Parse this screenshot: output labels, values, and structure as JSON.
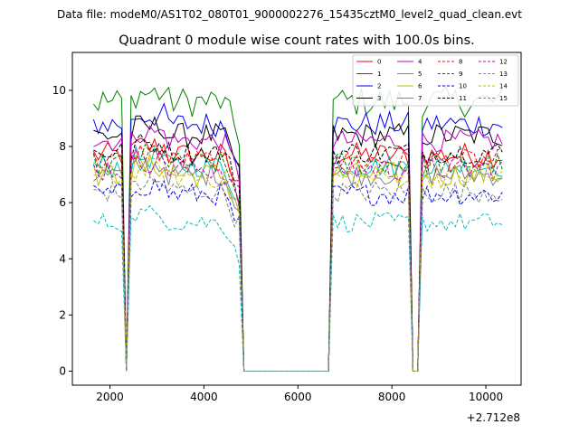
{
  "chart_data": {
    "type": "line",
    "suptitle": "Data file: modeM0/AS1T02_080T01_9000002276_15435cztM0_level2_quad_clean.evt",
    "title": "Quadrant 0 module wise count rates with 100.0s bins.",
    "xlabel": "",
    "ylabel": "",
    "x_offset_label": "+2.712e8",
    "xlim": [
      1200,
      10750
    ],
    "ylim": [
      -0.5,
      11.35
    ],
    "xticks": [
      2000,
      4000,
      6000,
      8000,
      10000
    ],
    "yticks": [
      0,
      2,
      4,
      6,
      8,
      10
    ],
    "legend_position": "top-right",
    "bin_width_s": 100,
    "x_start": 1650,
    "x_end": 10350,
    "segments": [
      [
        1650,
        2250
      ],
      [
        2450,
        4750
      ],
      [
        6750,
        8350
      ],
      [
        8650,
        10350
      ]
    ],
    "series": [
      {
        "name": "0",
        "color": "#ff0000",
        "dash": false,
        "level": 7.7,
        "amp": 0.45
      },
      {
        "name": "1",
        "color": "#008000",
        "dash": false,
        "level": 9.6,
        "amp": 0.55
      },
      {
        "name": "2",
        "color": "#0000ff",
        "dash": false,
        "level": 8.8,
        "amp": 0.45
      },
      {
        "name": "3",
        "color": "#000000",
        "dash": false,
        "level": 8.4,
        "amp": 0.45
      },
      {
        "name": "4",
        "color": "#bf00bf",
        "dash": false,
        "level": 8.2,
        "amp": 0.4
      },
      {
        "name": "5",
        "color": "#00bfbf",
        "dash": false,
        "level": 7.3,
        "amp": 0.4
      },
      {
        "name": "6",
        "color": "#bfbf00",
        "dash": false,
        "level": 7.0,
        "amp": 0.45
      },
      {
        "name": "7",
        "color": "#808080",
        "dash": false,
        "level": 7.0,
        "amp": 0.4
      },
      {
        "name": "8",
        "color": "#ff0000",
        "dash": true,
        "level": 7.5,
        "amp": 0.4
      },
      {
        "name": "9",
        "color": "#008000",
        "dash": true,
        "level": 7.4,
        "amp": 0.4
      },
      {
        "name": "10",
        "color": "#0000ff",
        "dash": true,
        "level": 6.3,
        "amp": 0.4
      },
      {
        "name": "11",
        "color": "#000000",
        "dash": true,
        "level": 7.8,
        "amp": 0.4
      },
      {
        "name": "12",
        "color": "#bf00bf",
        "dash": true,
        "level": 7.2,
        "amp": 0.45
      },
      {
        "name": "13",
        "color": "#00bfbf",
        "dash": true,
        "level": 5.3,
        "amp": 0.35
      },
      {
        "name": "14",
        "color": "#bfbf00",
        "dash": true,
        "level": 6.9,
        "amp": 0.4
      },
      {
        "name": "15",
        "color": "#808080",
        "dash": true,
        "level": 6.4,
        "amp": 0.4
      }
    ]
  }
}
